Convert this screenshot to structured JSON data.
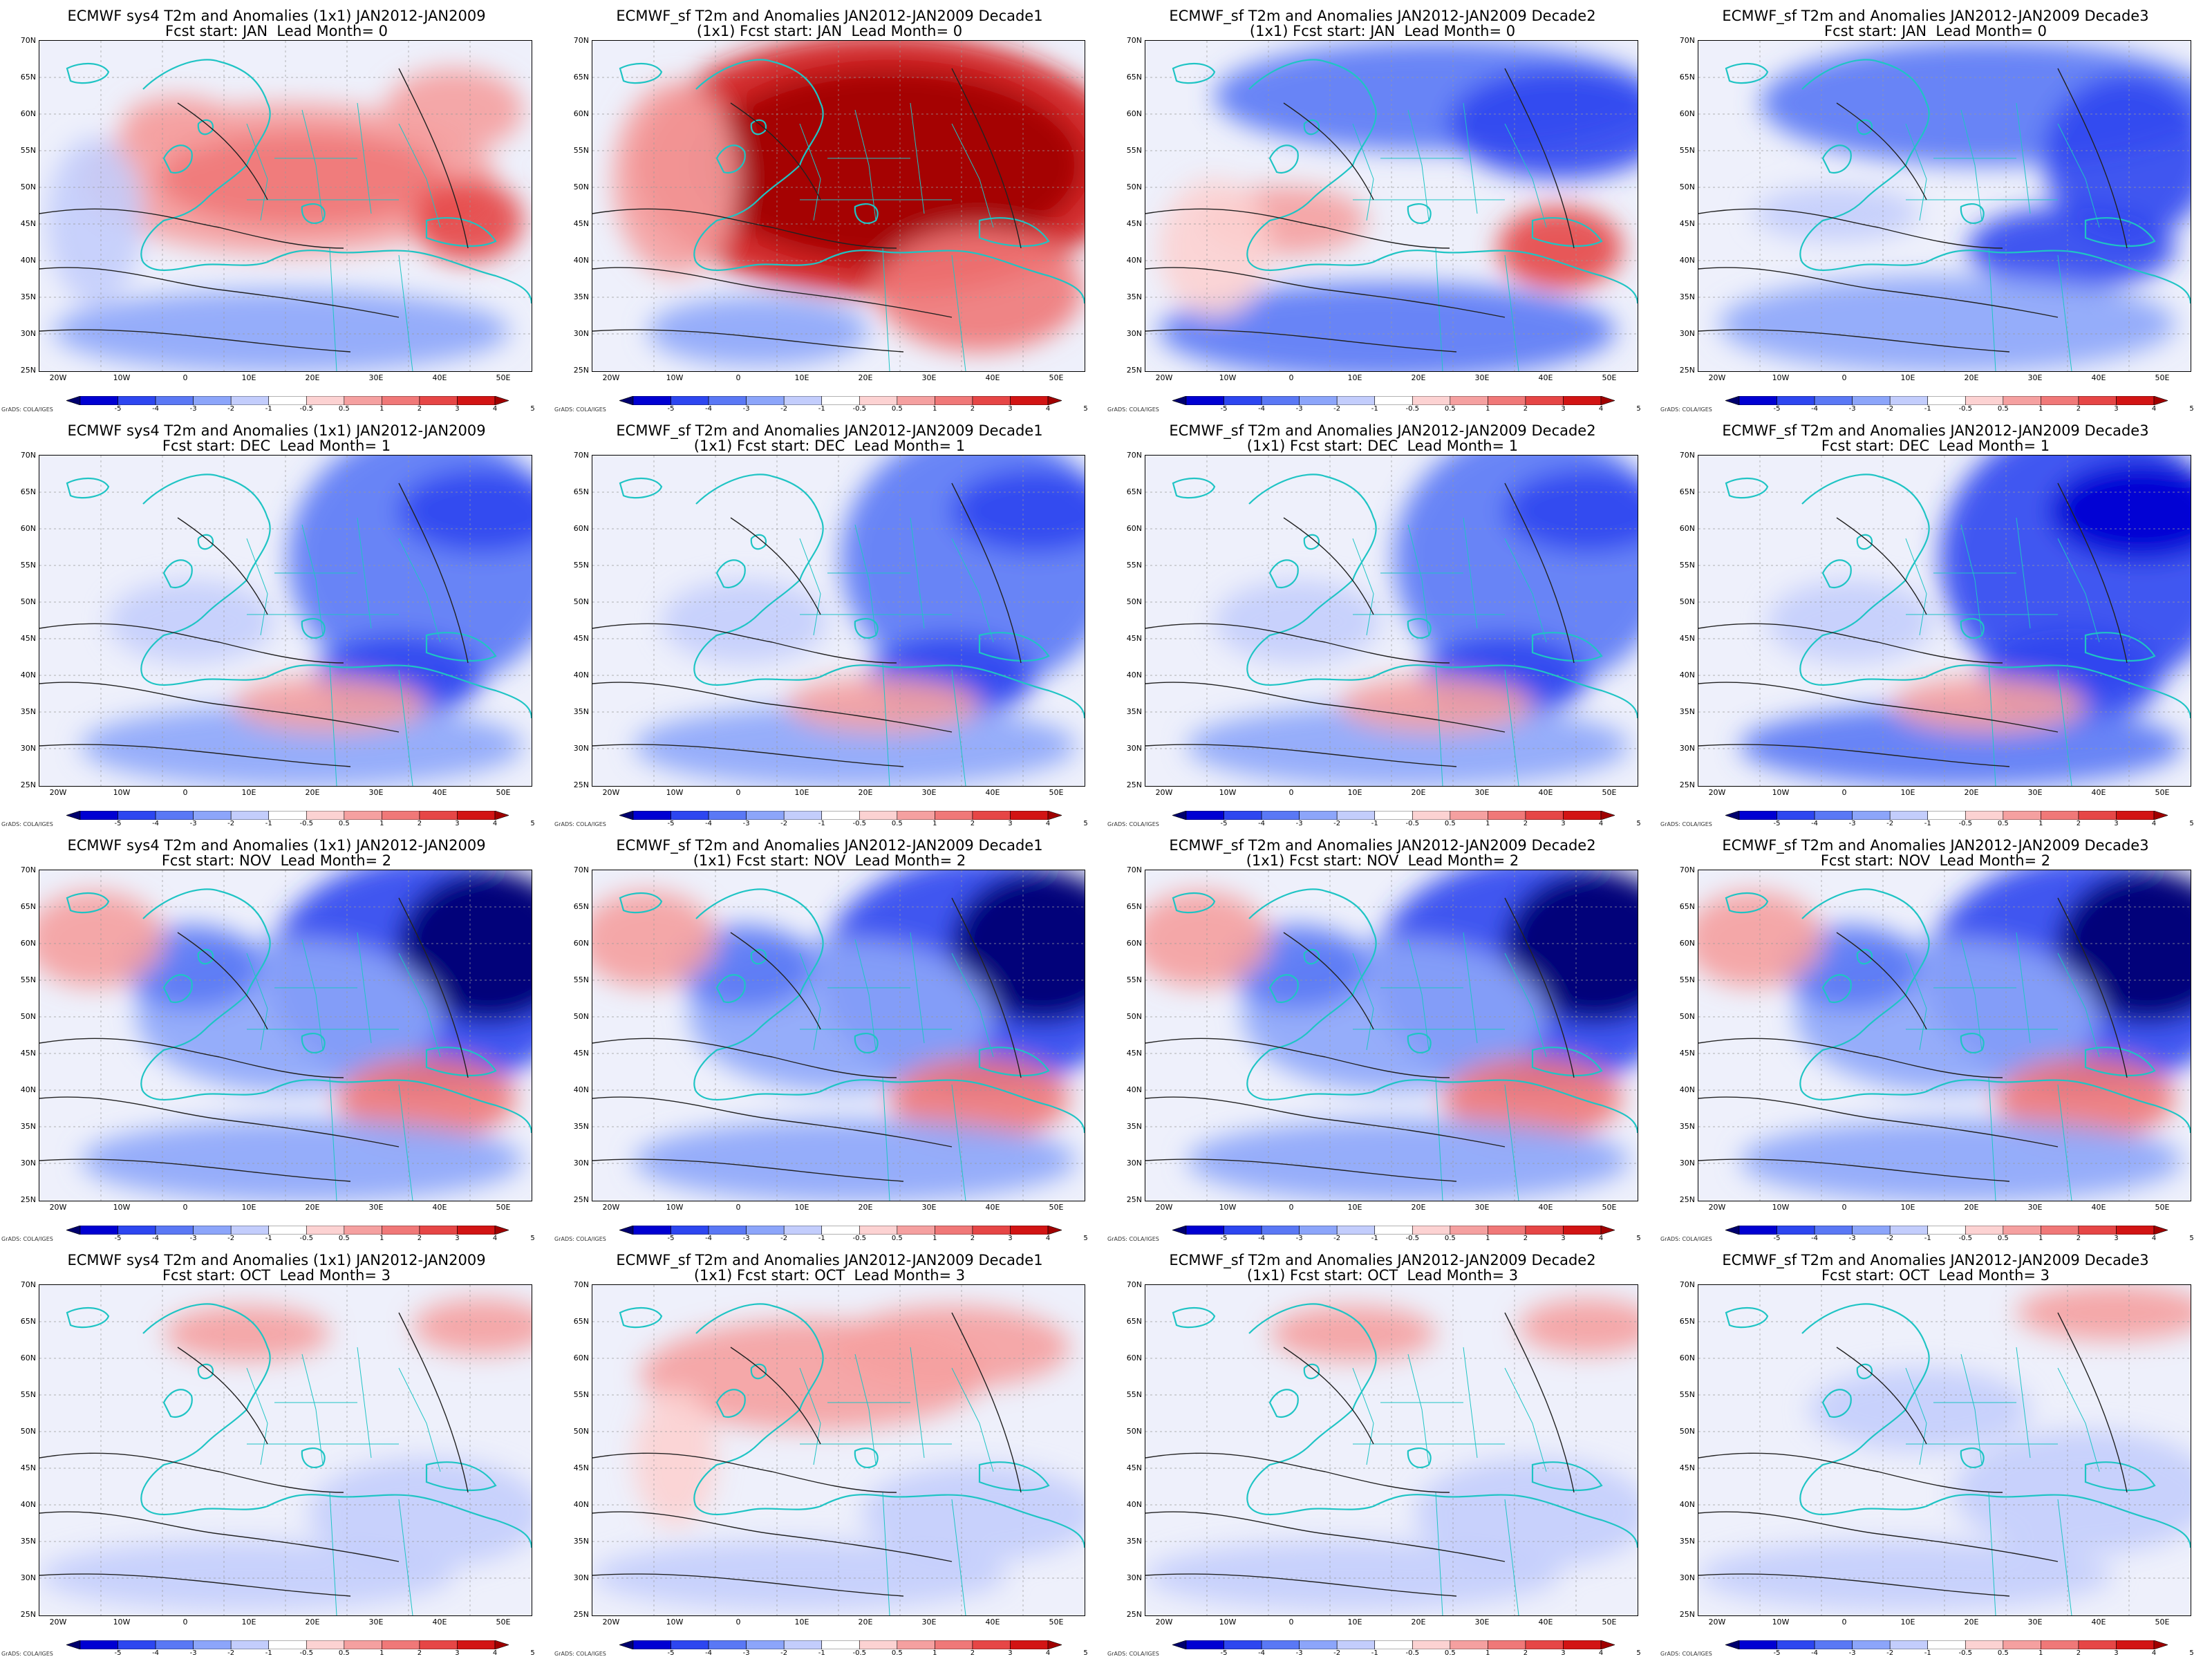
{
  "figure": {
    "panels": [
      {
        "title_line1": "ECMWF sys4 T2m and Anomalies (1x1) JAN2012-JAN2009",
        "title_line2": "Fcst start: JAN  Lead Month= 0",
        "pattern": "warm_central"
      },
      {
        "title_line1": "ECMWF_sf T2m and Anomalies JAN2012-JAN2009 Decade1",
        "title_line2": "(1x1) Fcst start: JAN  Lead Month= 0",
        "pattern": "very_warm"
      },
      {
        "title_line1": "ECMWF_sf T2m and Anomalies JAN2012-JAN2009 Decade2",
        "title_line2": "(1x1) Fcst start: JAN  Lead Month= 0",
        "pattern": "cold_north_warm_south"
      },
      {
        "title_line1": "ECMWF_sf T2m and Anomalies JAN2012-JAN2009 Decade3",
        "title_line2": "Fcst start: JAN  Lead Month= 0",
        "pattern": "cold_north"
      },
      {
        "title_line1": "ECMWF sys4 T2m and Anomalies (1x1) JAN2012-JAN2009",
        "title_line2": "Fcst start: DEC  Lead Month= 1",
        "pattern": "cold_east"
      },
      {
        "title_line1": "ECMWF_sf T2m and Anomalies JAN2012-JAN2009 Decade1",
        "title_line2": "(1x1) Fcst start: DEC  Lead Month= 1",
        "pattern": "cold_east"
      },
      {
        "title_line1": "ECMWF_sf T2m and Anomalies JAN2012-JAN2009 Decade2",
        "title_line2": "(1x1) Fcst start: DEC  Lead Month= 1",
        "pattern": "cold_east"
      },
      {
        "title_line1": "ECMWF_sf T2m and Anomalies JAN2012-JAN2009 Decade3",
        "title_line2": "Fcst start: DEC  Lead Month= 1",
        "pattern": "cold_east_strong"
      },
      {
        "title_line1": "ECMWF sys4 T2m and Anomalies (1x1) JAN2012-JAN2009",
        "title_line2": "Fcst start: NOV  Lead Month= 2",
        "pattern": "very_cold_ne"
      },
      {
        "title_line1": "ECMWF_sf T2m and Anomalies JAN2012-JAN2009 Decade1",
        "title_line2": "(1x1) Fcst start: NOV  Lead Month= 2",
        "pattern": "very_cold_ne"
      },
      {
        "title_line1": "ECMWF_sf T2m and Anomalies JAN2012-JAN2009 Decade2",
        "title_line2": "(1x1) Fcst start: NOV  Lead Month= 2",
        "pattern": "very_cold_ne"
      },
      {
        "title_line1": "ECMWF_sf T2m and Anomalies JAN2012-JAN2009 Decade3",
        "title_line2": "Fcst start: NOV  Lead Month= 2",
        "pattern": "very_cold_ne"
      },
      {
        "title_line1": "ECMWF sys4 T2m and Anomalies (1x1) JAN2012-JAN2009",
        "title_line2": "Fcst start: OCT  Lead Month= 3",
        "pattern": "weak"
      },
      {
        "title_line1": "ECMWF_sf T2m and Anomalies JAN2012-JAN2009 Decade1",
        "title_line2": "(1x1) Fcst start: OCT  Lead Month= 3",
        "pattern": "weak_warm"
      },
      {
        "title_line1": "ECMWF_sf T2m and Anomalies JAN2012-JAN2009 Decade2",
        "title_line2": "(1x1) Fcst start: OCT  Lead Month= 3",
        "pattern": "weak"
      },
      {
        "title_line1": "ECMWF_sf T2m and Anomalies JAN2012-JAN2009 Decade3",
        "title_line2": "Fcst start: OCT  Lead Month= 3",
        "pattern": "weak_cold"
      }
    ],
    "lat_labels": [
      "70N",
      "65N",
      "60N",
      "55N",
      "50N",
      "45N",
      "40N",
      "35N",
      "30N",
      "25N"
    ],
    "lon_labels": [
      "20W",
      "10W",
      "0",
      "10E",
      "20E",
      "30E",
      "40E",
      "50E"
    ],
    "colorbar": {
      "labels": [
        "-5",
        "-4",
        "-3",
        "-2",
        "-1",
        "-0.5",
        "0.5",
        "1",
        "2",
        "3",
        "4",
        "5"
      ],
      "colors": [
        "#00006e",
        "#0000d2",
        "#2d46f0",
        "#5a78f5",
        "#8ca5fa",
        "#c3cdfc",
        "#ffffff",
        "#fcd2d2",
        "#f5a0a0",
        "#f07878",
        "#e64646",
        "#d21414",
        "#a00000"
      ]
    },
    "credit": "GrADS: COLA/IGES"
  }
}
